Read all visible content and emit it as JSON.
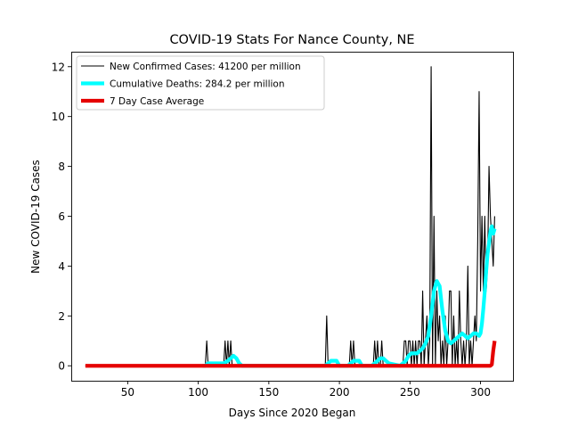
{
  "chart_data": {
    "type": "line",
    "title": "COVID-19 Stats For Nance County, NE",
    "xlabel": "Days Since 2020 Began",
    "ylabel": "New COVID-19 Cases",
    "xlim": [
      10,
      323
    ],
    "ylim": [
      -0.6,
      12.6
    ],
    "xticks": [
      50,
      100,
      150,
      200,
      250,
      300
    ],
    "yticks": [
      0,
      2,
      4,
      6,
      8,
      10,
      12
    ],
    "grid": false,
    "legend_position": "top-left",
    "series": [
      {
        "name": "New Confirmed Cases: 41200 per million",
        "color": "#000000",
        "line_style": "thin",
        "x": [
          20,
          104,
          105,
          106,
          107,
          118,
          119,
          120,
          121,
          122,
          123,
          124,
          125,
          190,
          191,
          192,
          193,
          207,
          208,
          209,
          210,
          211,
          224,
          225,
          226,
          227,
          228,
          229,
          230,
          231,
          245,
          246,
          247,
          248,
          249,
          250,
          251,
          252,
          253,
          254,
          255,
          256,
          257,
          258,
          259,
          260,
          261,
          262,
          263,
          264,
          265,
          266,
          267,
          268,
          269,
          270,
          271,
          272,
          273,
          274,
          275,
          276,
          277,
          278,
          279,
          280,
          281,
          282,
          283,
          284,
          285,
          286,
          287,
          288,
          289,
          290,
          291,
          292,
          293,
          294,
          295,
          296,
          297,
          298,
          299,
          300,
          301,
          302,
          303,
          304,
          305,
          306,
          307,
          308,
          309,
          310
        ],
        "values": [
          0,
          0,
          0,
          1,
          0,
          0,
          1,
          0,
          1,
          0,
          1,
          0,
          0,
          0,
          2,
          0,
          0,
          0,
          1,
          0,
          1,
          0,
          0,
          1,
          0,
          1,
          0,
          0,
          1,
          0,
          0,
          1,
          1,
          0,
          1,
          1,
          0,
          1,
          0,
          1,
          0,
          1,
          1,
          0,
          3,
          0,
          1,
          2,
          0,
          1,
          12,
          0,
          6,
          0,
          3,
          1,
          2,
          0,
          1,
          0,
          2,
          0,
          1,
          3,
          3,
          0,
          2,
          0,
          1,
          0,
          3,
          1,
          0,
          1,
          0,
          1,
          4,
          0,
          1,
          0,
          1,
          2,
          1,
          5,
          11,
          3,
          6,
          3,
          6,
          3,
          4,
          8,
          6,
          5,
          4,
          6
        ]
      },
      {
        "name": "Cumulative Deaths: 284.2 per million",
        "color": "#00FFFF",
        "line_style": "thick",
        "x": [
          103,
          105,
          107,
          110,
          112,
          115,
          118,
          121,
          123,
          125,
          127,
          129,
          131,
          190,
          192,
          194,
          196,
          198,
          200,
          206,
          208,
          210,
          212,
          214,
          216,
          223,
          225,
          227,
          229,
          231,
          233,
          235,
          243,
          245,
          247,
          249,
          251,
          253,
          255,
          257,
          259,
          261,
          263,
          265,
          267,
          269,
          271,
          273,
          275,
          277,
          279,
          281,
          283,
          285,
          287,
          289,
          291,
          293,
          295,
          297,
          299,
          300,
          301,
          302,
          303,
          304,
          305,
          306,
          307,
          308,
          309,
          310
        ],
        "values": [
          0,
          0,
          0.1,
          0.1,
          0.1,
          0.1,
          0.1,
          0.2,
          0.3,
          0.4,
          0.3,
          0.1,
          0,
          0,
          0.1,
          0.2,
          0.2,
          0.2,
          0,
          0,
          0.1,
          0.2,
          0.2,
          0.2,
          0,
          0,
          0.1,
          0.2,
          0.3,
          0.3,
          0.2,
          0.1,
          0,
          0.1,
          0.2,
          0.4,
          0.5,
          0.5,
          0.5,
          0.6,
          0.7,
          0.9,
          1.2,
          2.0,
          3.0,
          3.4,
          3.2,
          2.2,
          1.4,
          1.0,
          0.9,
          1.0,
          1.1,
          1.2,
          1.3,
          1.2,
          1.1,
          1.2,
          1.3,
          1.3,
          1.2,
          1.3,
          1.7,
          2.3,
          3.0,
          3.8,
          4.5,
          4.9,
          5.4,
          5.6,
          5.3,
          5.5
        ]
      },
      {
        "name": "7 Day Case Average",
        "color": "#E50000",
        "line_style": "thick",
        "x": [
          20,
          100,
          200,
          300,
          306,
          307,
          308,
          309,
          310
        ],
        "values": [
          0,
          0,
          0,
          0,
          0,
          0,
          0.05,
          0.6,
          1.0
        ]
      }
    ]
  }
}
